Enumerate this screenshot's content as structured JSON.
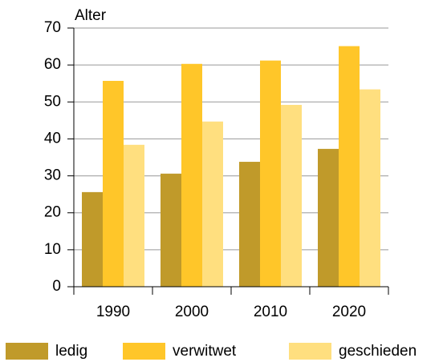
{
  "chart_data": {
    "type": "bar",
    "y_label": "Alter",
    "categories": [
      "1990",
      "2000",
      "2010",
      "2020"
    ],
    "series": [
      {
        "name": "ledig",
        "color": "#c09a2a",
        "values": [
          25.6,
          30.6,
          33.8,
          37.3
        ]
      },
      {
        "name": "verwitwet",
        "color": "#ffc629",
        "values": [
          55.7,
          60.3,
          61.2,
          65.1
        ]
      },
      {
        "name": "geschieden",
        "color": "#ffdf7f",
        "values": [
          38.4,
          44.7,
          49.2,
          53.4
        ]
      }
    ],
    "ylim": [
      0,
      70
    ],
    "yticks": [
      0,
      10,
      20,
      30,
      40,
      50,
      60,
      70
    ],
    "grid": true,
    "legend": "bottom"
  }
}
